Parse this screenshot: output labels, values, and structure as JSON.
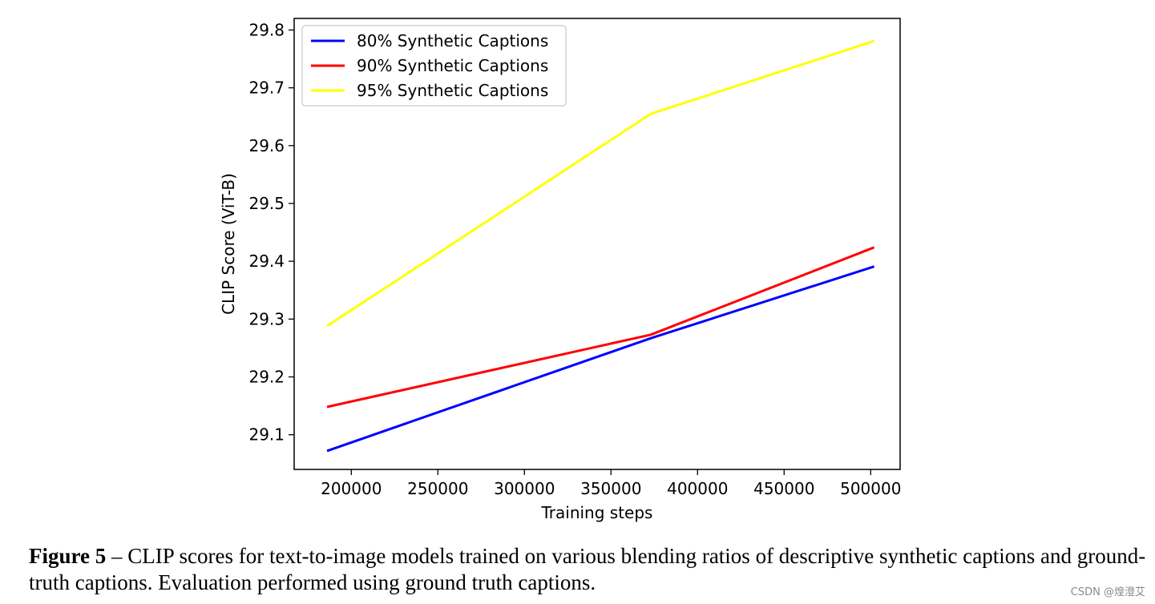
{
  "chart_data": {
    "type": "line",
    "xlabel": "Training steps",
    "ylabel": "CLIP Score (ViT-B)",
    "xlim": [
      167000,
      517000
    ],
    "ylim": [
      29.04,
      29.82
    ],
    "xticks": [
      200000,
      250000,
      300000,
      350000,
      400000,
      450000,
      500000
    ],
    "yticks": [
      29.1,
      29.2,
      29.3,
      29.4,
      29.5,
      29.6,
      29.7,
      29.8
    ],
    "xtick_labels": [
      "200000",
      "250000",
      "300000",
      "350000",
      "400000",
      "450000",
      "500000"
    ],
    "ytick_labels": [
      "29.1",
      "29.2",
      "29.3",
      "29.4",
      "29.5",
      "29.6",
      "29.7",
      "29.8"
    ],
    "legend_position": "top-left",
    "x": [
      186000,
      373000,
      502000
    ],
    "series": [
      {
        "name": "80% Synthetic Captions",
        "color": "#0000ff",
        "values": [
          29.072,
          29.267,
          29.391
        ]
      },
      {
        "name": "90% Synthetic Captions",
        "color": "#ff0000",
        "values": [
          29.148,
          29.273,
          29.424
        ]
      },
      {
        "name": "95% Synthetic Captions",
        "color": "#ffff00",
        "values": [
          29.288,
          29.655,
          29.781
        ]
      }
    ]
  },
  "caption": {
    "label": "Figure 5",
    "text": " – CLIP scores for text-to-image models trained on various blending ratios of descriptive synthetic captions and ground-truth captions. Evaluation performed using ground truth captions."
  },
  "watermark": "CSDN @煌澄艾"
}
